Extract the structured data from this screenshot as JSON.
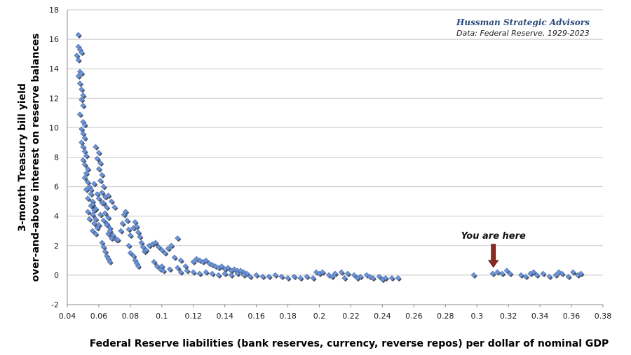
{
  "chart_data": {
    "type": "scatter",
    "xlabel": "Federal Reserve liabilities (bank reserves, currency, reverse repos) per dollar of nominal GDP",
    "ylabel_line1": "3-month Treasury bill yield",
    "ylabel_line2": "over-and-above interest on reserve balances",
    "xlim": [
      0.04,
      0.38
    ],
    "ylim": [
      -2,
      18
    ],
    "x_ticks": [
      "0.04",
      "0.06",
      "0.08",
      "0.1",
      "0.12",
      "0.14",
      "0.16",
      "0.18",
      "0.2",
      "0.22",
      "0.24",
      "0.26",
      "0.28",
      "0.3",
      "0.32",
      "0.34",
      "0.36",
      "0.38"
    ],
    "y_ticks": [
      "-2",
      "0",
      "2",
      "4",
      "6",
      "8",
      "10",
      "12",
      "14",
      "16",
      "18"
    ],
    "grid": "horizontal",
    "source_title": "Hussman Strategic Advisors",
    "source_subtitle": "Data: Federal Reserve, 1929-2023",
    "annotation": {
      "text": "You are here",
      "x": 0.31,
      "y": 0.1
    },
    "colors": {
      "marker": "#6f94d4",
      "marker_stroke": "#3e66ad",
      "shadow": "#1a1a1a",
      "arrow": "#8b2a25",
      "grid": "#c8c8c8"
    },
    "series": [
      {
        "points": [
          [
            0.047,
            16.3
          ],
          [
            0.047,
            15.5
          ],
          [
            0.048,
            15.3
          ],
          [
            0.049,
            15.1
          ],
          [
            0.046,
            14.9
          ],
          [
            0.047,
            14.6
          ],
          [
            0.048,
            13.8
          ],
          [
            0.047,
            13.5
          ],
          [
            0.049,
            13.7
          ],
          [
            0.048,
            13.0
          ],
          [
            0.049,
            12.6
          ],
          [
            0.05,
            12.2
          ],
          [
            0.049,
            11.9
          ],
          [
            0.05,
            11.5
          ],
          [
            0.048,
            10.9
          ],
          [
            0.05,
            10.4
          ],
          [
            0.051,
            10.2
          ],
          [
            0.049,
            9.9
          ],
          [
            0.05,
            9.6
          ],
          [
            0.051,
            9.3
          ],
          [
            0.049,
            9.0
          ],
          [
            0.05,
            8.7
          ],
          [
            0.051,
            8.4
          ],
          [
            0.052,
            8.1
          ],
          [
            0.05,
            7.8
          ],
          [
            0.051,
            7.5
          ],
          [
            0.053,
            7.2
          ],
          [
            0.052,
            6.9
          ],
          [
            0.051,
            6.6
          ],
          [
            0.053,
            6.3
          ],
          [
            0.054,
            6.0
          ],
          [
            0.052,
            5.8
          ],
          [
            0.055,
            5.5
          ],
          [
            0.053,
            5.2
          ],
          [
            0.056,
            5.0
          ],
          [
            0.055,
            4.7
          ],
          [
            0.057,
            4.4
          ],
          [
            0.056,
            4.1
          ],
          [
            0.058,
            3.8
          ],
          [
            0.057,
            3.5
          ],
          [
            0.059,
            3.2
          ],
          [
            0.056,
            3.0
          ],
          [
            0.058,
            2.8
          ],
          [
            0.06,
            3.4
          ],
          [
            0.058,
            8.7
          ],
          [
            0.06,
            8.3
          ],
          [
            0.059,
            7.9
          ],
          [
            0.061,
            7.6
          ],
          [
            0.06,
            7.2
          ],
          [
            0.062,
            6.8
          ],
          [
            0.061,
            6.4
          ],
          [
            0.063,
            6.0
          ],
          [
            0.062,
            5.6
          ],
          [
            0.064,
            5.3
          ],
          [
            0.063,
            4.9
          ],
          [
            0.065,
            4.6
          ],
          [
            0.064,
            4.2
          ],
          [
            0.066,
            3.9
          ],
          [
            0.065,
            3.5
          ],
          [
            0.067,
            3.2
          ],
          [
            0.066,
            2.8
          ],
          [
            0.068,
            2.5
          ],
          [
            0.062,
            2.2
          ],
          [
            0.063,
            1.9
          ],
          [
            0.064,
            1.6
          ],
          [
            0.065,
            1.3
          ],
          [
            0.066,
            1.1
          ],
          [
            0.067,
            0.9
          ],
          [
            0.06,
            5.2
          ],
          [
            0.062,
            4.9
          ],
          [
            0.058,
            4.5
          ],
          [
            0.057,
            6.2
          ],
          [
            0.055,
            5.8
          ],
          [
            0.056,
            4.8
          ],
          [
            0.054,
            3.8
          ],
          [
            0.053,
            4.3
          ],
          [
            0.059,
            5.5
          ],
          [
            0.061,
            4.1
          ],
          [
            0.063,
            3.7
          ],
          [
            0.065,
            3.4
          ],
          [
            0.067,
            3.0
          ],
          [
            0.069,
            2.7
          ],
          [
            0.071,
            2.4
          ],
          [
            0.07,
            4.6
          ],
          [
            0.068,
            5.0
          ],
          [
            0.066,
            5.4
          ],
          [
            0.072,
            2.4
          ],
          [
            0.074,
            3.0
          ],
          [
            0.075,
            3.5
          ],
          [
            0.076,
            4.1
          ],
          [
            0.077,
            4.3
          ],
          [
            0.078,
            3.7
          ],
          [
            0.079,
            3.1
          ],
          [
            0.08,
            2.7
          ],
          [
            0.082,
            3.2
          ],
          [
            0.083,
            3.6
          ],
          [
            0.084,
            3.3
          ],
          [
            0.085,
            2.9
          ],
          [
            0.086,
            2.6
          ],
          [
            0.087,
            2.2
          ],
          [
            0.088,
            1.9
          ],
          [
            0.089,
            1.6
          ],
          [
            0.082,
            1.3
          ],
          [
            0.083,
            1.0
          ],
          [
            0.084,
            0.8
          ],
          [
            0.085,
            0.6
          ],
          [
            0.08,
            1.5
          ],
          [
            0.079,
            2.0
          ],
          [
            0.09,
            1.7
          ],
          [
            0.092,
            2.0
          ],
          [
            0.094,
            2.1
          ],
          [
            0.096,
            2.2
          ],
          [
            0.098,
            1.9
          ],
          [
            0.1,
            1.7
          ],
          [
            0.102,
            1.5
          ],
          [
            0.104,
            1.8
          ],
          [
            0.106,
            2.0
          ],
          [
            0.108,
            1.2
          ],
          [
            0.11,
            2.5
          ],
          [
            0.112,
            1.0
          ],
          [
            0.095,
            0.9
          ],
          [
            0.097,
            0.6
          ],
          [
            0.099,
            0.4
          ],
          [
            0.101,
            0.3
          ],
          [
            0.1,
            0.6
          ],
          [
            0.105,
            0.4
          ],
          [
            0.11,
            0.5
          ],
          [
            0.115,
            0.6
          ],
          [
            0.12,
            0.9
          ],
          [
            0.122,
            1.1
          ],
          [
            0.124,
            1.0
          ],
          [
            0.126,
            0.9
          ],
          [
            0.128,
            1.0
          ],
          [
            0.13,
            0.8
          ],
          [
            0.132,
            0.7
          ],
          [
            0.134,
            0.6
          ],
          [
            0.136,
            0.5
          ],
          [
            0.138,
            0.6
          ],
          [
            0.14,
            0.4
          ],
          [
            0.142,
            0.5
          ],
          [
            0.144,
            0.3
          ],
          [
            0.146,
            0.4
          ],
          [
            0.148,
            0.3
          ],
          [
            0.15,
            0.3
          ],
          [
            0.152,
            0.2
          ],
          [
            0.154,
            0.1
          ],
          [
            0.112,
            0.2
          ],
          [
            0.116,
            0.3
          ],
          [
            0.12,
            0.2
          ],
          [
            0.124,
            0.1
          ],
          [
            0.128,
            0.2
          ],
          [
            0.132,
            0.1
          ],
          [
            0.136,
            0.0
          ],
          [
            0.14,
            0.1
          ],
          [
            0.144,
            0.0
          ],
          [
            0.148,
            0.1
          ],
          [
            0.152,
            0.0
          ],
          [
            0.156,
            -0.1
          ],
          [
            0.16,
            0.0
          ],
          [
            0.164,
            -0.1
          ],
          [
            0.168,
            -0.1
          ],
          [
            0.172,
            0.0
          ],
          [
            0.176,
            -0.1
          ],
          [
            0.18,
            -0.2
          ],
          [
            0.184,
            -0.1
          ],
          [
            0.188,
            -0.2
          ],
          [
            0.192,
            -0.1
          ],
          [
            0.196,
            -0.2
          ],
          [
            0.198,
            0.2
          ],
          [
            0.2,
            0.1
          ],
          [
            0.202,
            0.2
          ],
          [
            0.206,
            0.0
          ],
          [
            0.21,
            0.1
          ],
          [
            0.214,
            0.2
          ],
          [
            0.218,
            0.1
          ],
          [
            0.222,
            0.0
          ],
          [
            0.226,
            -0.1
          ],
          [
            0.23,
            0.0
          ],
          [
            0.234,
            -0.2
          ],
          [
            0.238,
            -0.1
          ],
          [
            0.242,
            -0.2
          ],
          [
            0.246,
            -0.2
          ],
          [
            0.25,
            -0.2
          ],
          [
            0.208,
            -0.1
          ],
          [
            0.216,
            -0.2
          ],
          [
            0.224,
            -0.2
          ],
          [
            0.232,
            -0.1
          ],
          [
            0.24,
            -0.3
          ],
          [
            0.298,
            0.0
          ],
          [
            0.31,
            0.1
          ],
          [
            0.313,
            0.2
          ],
          [
            0.316,
            0.1
          ],
          [
            0.319,
            0.3
          ],
          [
            0.321,
            0.1
          ],
          [
            0.328,
            0.0
          ],
          [
            0.331,
            -0.1
          ],
          [
            0.334,
            0.1
          ],
          [
            0.338,
            0.0
          ],
          [
            0.342,
            0.1
          ],
          [
            0.346,
            -0.1
          ],
          [
            0.35,
            0.0
          ],
          [
            0.354,
            0.1
          ],
          [
            0.358,
            -0.1
          ],
          [
            0.361,
            0.2
          ],
          [
            0.364,
            0.0
          ],
          [
            0.366,
            0.1
          ],
          [
            0.336,
            0.2
          ],
          [
            0.352,
            0.2
          ]
        ]
      }
    ]
  }
}
